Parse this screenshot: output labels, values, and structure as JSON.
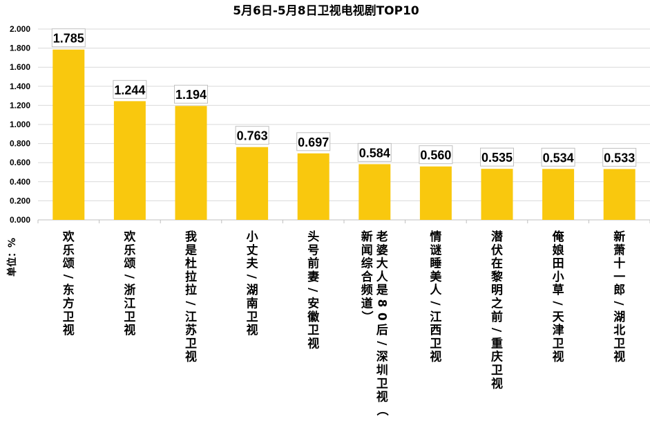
{
  "chart_data": {
    "type": "bar",
    "title": "5月6日-5月8日卫视电视剧TOP10",
    "ylabel": "单位：%",
    "ylim": [
      0,
      2.0
    ],
    "ytick_labels": [
      "0.000",
      "0.200",
      "0.400",
      "0.600",
      "0.800",
      "1.000",
      "1.200",
      "1.400",
      "1.600",
      "1.800",
      "2.000"
    ],
    "grid": true,
    "categories": [
      "欢乐颂/东方卫视",
      "欢乐颂/浙江卫视",
      "我是杜拉拉/江苏卫视",
      "小丈夫/湖南卫视",
      "头号前妻/安徽卫视",
      "老婆大人是80后/深圳卫视（新闻综合频道）",
      "情谜睡美人/江西卫视",
      "潜伏在黎明之前/重庆卫视",
      "俺娘田小草/天津卫视",
      "新萧十一郎/湖北卫视"
    ],
    "values": [
      1.785,
      1.244,
      1.194,
      0.763,
      0.697,
      0.584,
      0.56,
      0.535,
      0.534,
      0.533
    ],
    "value_labels": [
      "1.785",
      "1.244",
      "1.194",
      "0.763",
      "0.697",
      "0.584",
      "0.560",
      "0.535",
      "0.534",
      "0.533"
    ],
    "bar_color": "#f9c80e"
  }
}
